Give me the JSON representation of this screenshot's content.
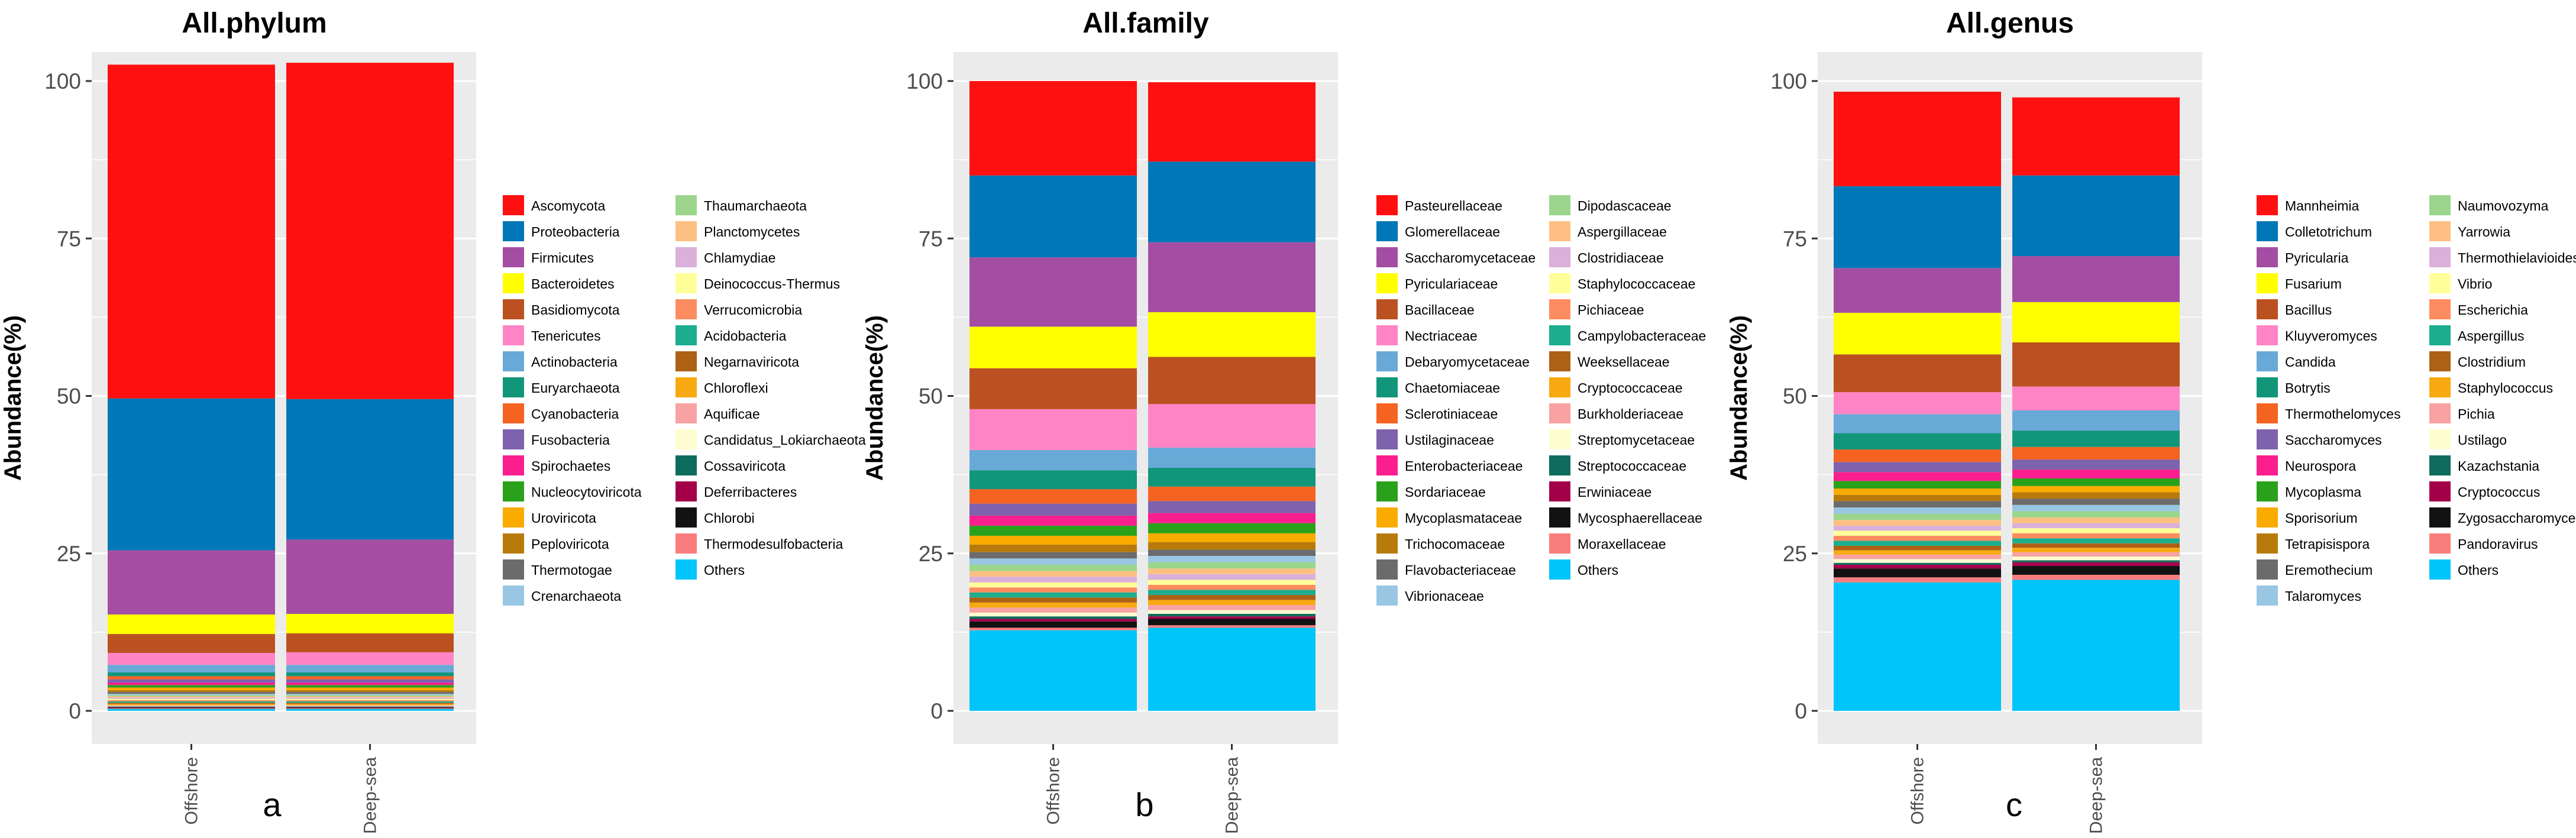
{
  "colors": {
    "background": "#ffffff",
    "plot_background": "#ebebeb",
    "gridline": "#ffffff",
    "palette": [
      "#ff1010",
      "#0077b7",
      "#a44ea3",
      "#ffff00",
      "#bb5121",
      "#ff84c5",
      "#68a9d7",
      "#12967a",
      "#f56322",
      "#7e62ae",
      "#fb1e8e",
      "#2aa11a",
      "#f9ab00",
      "#b97a0c",
      "#6b6b6b",
      "#99c7e3",
      "#9bd68c",
      "#fec082",
      "#dbb0da",
      "#ffff99",
      "#fd8c60",
      "#1cae8f",
      "#ac6115",
      "#f8a911",
      "#f8a2a3",
      "#fefdd2",
      "#0e6c5c",
      "#a4004a",
      "#121212",
      "#f97d7d",
      "#00c5fa"
    ]
  },
  "chart_data": [
    {
      "type": "bar",
      "stacked": true,
      "title": "All.phylum",
      "panel_label": "a",
      "ylabel": "Abundance(%)",
      "xlabel": "",
      "ylim": [
        0,
        100
      ],
      "yticks": [
        0,
        25,
        50,
        75,
        100
      ],
      "categories": [
        "Offshore",
        "Deep-sea"
      ],
      "legend_position": "right",
      "series": [
        {
          "name": "Others",
          "values": [
            0.3,
            0.3
          ]
        },
        {
          "name": "Thermodesulfobacteria",
          "values": [
            0.1,
            0.1
          ]
        },
        {
          "name": "Chlorobi",
          "values": [
            0.1,
            0.1
          ]
        },
        {
          "name": "Deferribacteres",
          "values": [
            0.1,
            0.1
          ]
        },
        {
          "name": "Cossaviricota",
          "values": [
            0.1,
            0.1
          ]
        },
        {
          "name": "Candidatus_Lokiarchaeota",
          "values": [
            0.1,
            0.1
          ]
        },
        {
          "name": "Aquificae",
          "values": [
            0.1,
            0.1
          ]
        },
        {
          "name": "Chloroflexi",
          "values": [
            0.2,
            0.2
          ]
        },
        {
          "name": "Negarnaviricota",
          "values": [
            0.2,
            0.2
          ]
        },
        {
          "name": "Acidobacteria",
          "values": [
            0.2,
            0.2
          ]
        },
        {
          "name": "Verrucomicrobia",
          "values": [
            0.2,
            0.2
          ]
        },
        {
          "name": "Deinococcus-Thermus",
          "values": [
            0.2,
            0.2
          ]
        },
        {
          "name": "Chlamydiae",
          "values": [
            0.2,
            0.2
          ]
        },
        {
          "name": "Planctomycetes",
          "values": [
            0.2,
            0.2
          ]
        },
        {
          "name": "Thaumarchaeota",
          "values": [
            0.2,
            0.2
          ]
        },
        {
          "name": "Crenarchaeota",
          "values": [
            0.2,
            0.2
          ]
        },
        {
          "name": "Thermotogae",
          "values": [
            0.3,
            0.3
          ]
        },
        {
          "name": "Peploviricota",
          "values": [
            0.3,
            0.3
          ]
        },
        {
          "name": "Uroviricota",
          "values": [
            0.4,
            0.4
          ]
        },
        {
          "name": "Nucleocytoviricota",
          "values": [
            0.4,
            0.4
          ]
        },
        {
          "name": "Spirochaetes",
          "values": [
            0.4,
            0.4
          ]
        },
        {
          "name": "Fusobacteria",
          "values": [
            0.5,
            0.5
          ]
        },
        {
          "name": "Cyanobacteria",
          "values": [
            0.5,
            0.5
          ]
        },
        {
          "name": "Euryarchaeota",
          "values": [
            0.6,
            0.6
          ]
        },
        {
          "name": "Actinobacteria",
          "values": [
            1.2,
            1.2
          ]
        },
        {
          "name": "Tenericutes",
          "values": [
            1.9,
            2.0
          ]
        },
        {
          "name": "Basidiomycota",
          "values": [
            3.0,
            3.0
          ]
        },
        {
          "name": "Bacteroidetes",
          "values": [
            3.1,
            3.1
          ]
        },
        {
          "name": "Firmicutes",
          "values": [
            10.2,
            11.8
          ]
        },
        {
          "name": "Proteobacteria",
          "values": [
            24.1,
            22.3
          ]
        },
        {
          "name": "Ascomycota",
          "values": [
            53.0,
            53.4
          ]
        }
      ]
    },
    {
      "type": "bar",
      "stacked": true,
      "title": "All.family",
      "panel_label": "b",
      "ylabel": "Abundance(%)",
      "xlabel": "",
      "ylim": [
        0,
        100
      ],
      "yticks": [
        0,
        25,
        50,
        75,
        100
      ],
      "categories": [
        "Offshore",
        "Deep-sea"
      ],
      "legend_position": "right",
      "series": [
        {
          "name": "Others",
          "values": [
            12.8,
            13.2
          ]
        },
        {
          "name": "Moraxellaceae",
          "values": [
            0.4,
            0.4
          ]
        },
        {
          "name": "Mycosphaerellaceae",
          "values": [
            1.0,
            1.0
          ]
        },
        {
          "name": "Erwiniaceae",
          "values": [
            0.4,
            0.4
          ]
        },
        {
          "name": "Streptococcaceae",
          "values": [
            0.4,
            0.4
          ]
        },
        {
          "name": "Streptomycetaceae",
          "values": [
            0.6,
            0.6
          ]
        },
        {
          "name": "Burkholderiaceae",
          "values": [
            0.8,
            0.8
          ]
        },
        {
          "name": "Cryptococcaceae",
          "values": [
            0.8,
            0.8
          ]
        },
        {
          "name": "Weeksellaceae",
          "values": [
            0.8,
            0.8
          ]
        },
        {
          "name": "Campylobacteraceae",
          "values": [
            0.8,
            0.8
          ]
        },
        {
          "name": "Pichiaceae",
          "values": [
            0.8,
            0.8
          ]
        },
        {
          "name": "Staphylococcaceae",
          "values": [
            0.8,
            0.8
          ]
        },
        {
          "name": "Clostridiaceae",
          "values": [
            0.9,
            0.9
          ]
        },
        {
          "name": "Aspergillaceae",
          "values": [
            0.9,
            0.9
          ]
        },
        {
          "name": "Dipodascaceae",
          "values": [
            1.0,
            1.0
          ]
        },
        {
          "name": "Vibrionaceae",
          "values": [
            1.0,
            1.0
          ]
        },
        {
          "name": "Flavobacteriaceae",
          "values": [
            1.0,
            1.0
          ]
        },
        {
          "name": "Trichocomaceae",
          "values": [
            1.2,
            1.2
          ]
        },
        {
          "name": "Mycoplasmataceae",
          "values": [
            1.4,
            1.4
          ]
        },
        {
          "name": "Sordariaceae",
          "values": [
            1.6,
            1.6
          ]
        },
        {
          "name": "Enterobacteriaceae",
          "values": [
            1.6,
            1.6
          ]
        },
        {
          "name": "Ustilaginaceae",
          "values": [
            1.9,
            1.9
          ]
        },
        {
          "name": "Sclerotiniaceae",
          "values": [
            2.3,
            2.3
          ]
        },
        {
          "name": "Chaetomiaceae",
          "values": [
            3.0,
            3.0
          ]
        },
        {
          "name": "Debaryomycetaceae",
          "values": [
            3.2,
            3.2
          ]
        },
        {
          "name": "Nectriaceae",
          "values": [
            6.5,
            6.9
          ]
        },
        {
          "name": "Bacillaceae",
          "values": [
            6.5,
            7.5
          ]
        },
        {
          "name": "Pyriculariaceae",
          "values": [
            6.6,
            7.1
          ]
        },
        {
          "name": "Saccharomycetaceae",
          "values": [
            11.0,
            11.1
          ]
        },
        {
          "name": "Glomerellaceae",
          "values": [
            13.0,
            12.8
          ]
        },
        {
          "name": "Pasteurellaceae",
          "values": [
            15.0,
            12.6
          ]
        }
      ]
    },
    {
      "type": "bar",
      "stacked": true,
      "title": "All.genus",
      "panel_label": "c",
      "ylabel": "Abundance(%)",
      "xlabel": "",
      "ylim": [
        0,
        100
      ],
      "yticks": [
        0,
        25,
        50,
        75,
        100
      ],
      "categories": [
        "Offshore",
        "Deep-sea"
      ],
      "legend_position": "right",
      "series": [
        {
          "name": "Others",
          "values": [
            20.4,
            20.8
          ]
        },
        {
          "name": "Pandoravirus",
          "values": [
            0.8,
            0.8
          ]
        },
        {
          "name": "Zygosaccharomyces",
          "values": [
            1.4,
            1.4
          ]
        },
        {
          "name": "Cryptococcus",
          "values": [
            0.6,
            0.6
          ]
        },
        {
          "name": "Kazachstania",
          "values": [
            0.3,
            0.3
          ]
        },
        {
          "name": "Ustilago",
          "values": [
            0.6,
            0.6
          ]
        },
        {
          "name": "Pichia",
          "values": [
            0.7,
            0.7
          ]
        },
        {
          "name": "Staphylococcus",
          "values": [
            0.7,
            0.7
          ]
        },
        {
          "name": "Clostridium",
          "values": [
            0.7,
            0.7
          ]
        },
        {
          "name": "Aspergillus",
          "values": [
            0.8,
            0.8
          ]
        },
        {
          "name": "Escherichia",
          "values": [
            0.8,
            0.8
          ]
        },
        {
          "name": "Vibrio",
          "values": [
            0.8,
            0.8
          ]
        },
        {
          "name": "Thermothielavioides",
          "values": [
            0.8,
            0.8
          ]
        },
        {
          "name": "Yarrowia",
          "values": [
            0.9,
            0.9
          ]
        },
        {
          "name": "Naumovozyma",
          "values": [
            1.0,
            1.0
          ]
        },
        {
          "name": "Talaromyces",
          "values": [
            1.0,
            1.0
          ]
        },
        {
          "name": "Eremothecium",
          "values": [
            1.0,
            1.0
          ]
        },
        {
          "name": "Tetrapisispora",
          "values": [
            1.0,
            1.0
          ]
        },
        {
          "name": "Sporisorium",
          "values": [
            1.0,
            1.0
          ]
        },
        {
          "name": "Mycoplasma",
          "values": [
            1.2,
            1.2
          ]
        },
        {
          "name": "Neurospora",
          "values": [
            1.4,
            1.4
          ]
        },
        {
          "name": "Saccharomyces",
          "values": [
            1.6,
            1.6
          ]
        },
        {
          "name": "Thermothelomyces",
          "values": [
            2.0,
            2.0
          ]
        },
        {
          "name": "Botrytis",
          "values": [
            2.6,
            2.6
          ]
        },
        {
          "name": "Candida",
          "values": [
            3.0,
            3.2
          ]
        },
        {
          "name": "Kluyveromyces",
          "values": [
            3.5,
            3.8
          ]
        },
        {
          "name": "Bacillus",
          "values": [
            6.0,
            7.0
          ]
        },
        {
          "name": "Fusarium",
          "values": [
            6.6,
            6.4
          ]
        },
        {
          "name": "Pyricularia",
          "values": [
            7.1,
            7.3
          ]
        },
        {
          "name": "Colletotrichum",
          "values": [
            13.0,
            12.8
          ]
        },
        {
          "name": "Mannheimia",
          "values": [
            15.0,
            12.4
          ]
        }
      ]
    }
  ]
}
